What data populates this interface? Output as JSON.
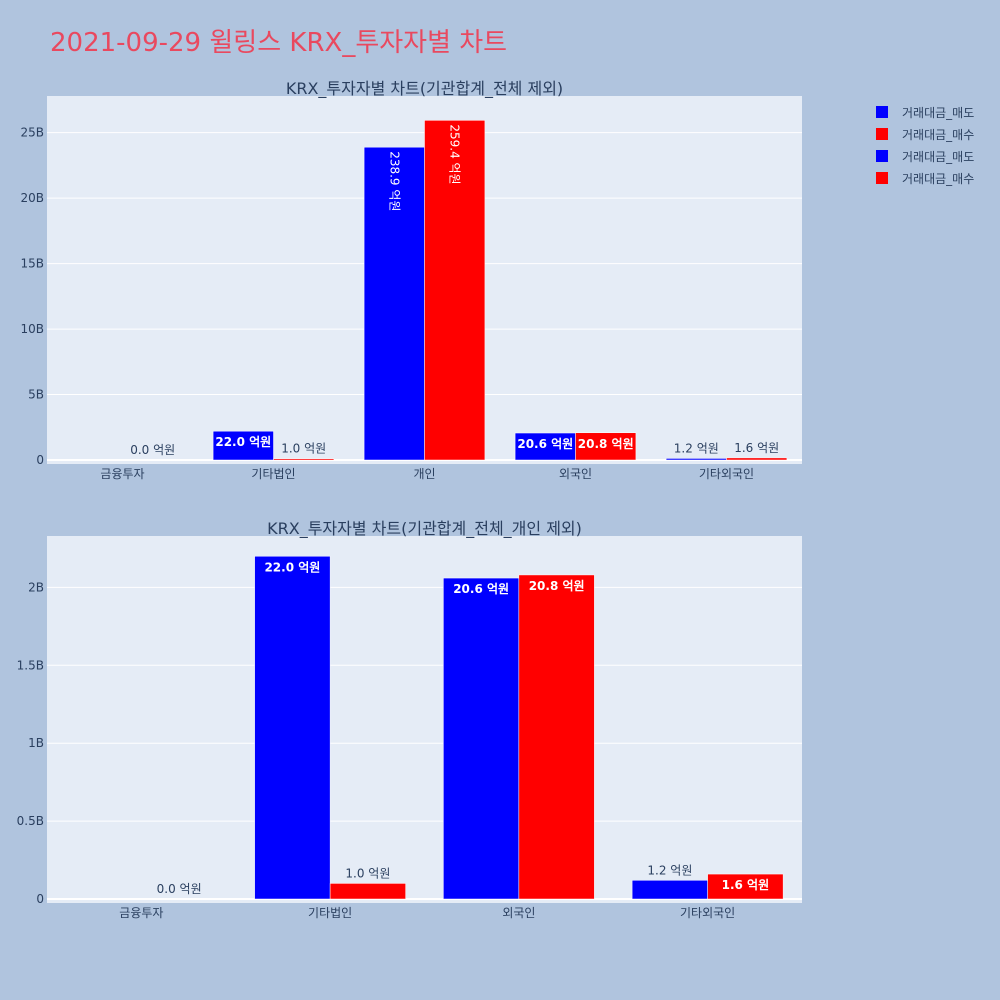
{
  "title": "2021-09-29 윌링스 KRX_투자자별 차트",
  "legend": {
    "entries": [
      {
        "name": "거래대금_매도",
        "color": "#0000ff"
      },
      {
        "name": "거래대금_매수",
        "color": "#ff0000"
      },
      {
        "name": "거래대금_매도",
        "color": "#0000ff"
      },
      {
        "name": "거래대금_매수",
        "color": "#ff0000"
      }
    ]
  },
  "colors": {
    "sell": "#0000ff",
    "buy": "#ff0000",
    "plot_bg": "#e5ecf6",
    "paper_bg": "#b0c4de"
  },
  "chart_data": [
    {
      "type": "bar",
      "title": "KRX_투자자별 차트(기관합계_전체 제외)",
      "categories": [
        "금융투자",
        "기타법인",
        "개인",
        "외국인",
        "기타외국인"
      ],
      "ylim": [
        0,
        27.8
      ],
      "yunit": "B",
      "yticks": [
        0,
        5,
        10,
        15,
        20,
        25
      ],
      "ytick_labels": [
        "0",
        "5B",
        "10B",
        "15B",
        "20B",
        "25B"
      ],
      "grid": true,
      "legend_position": "top-right",
      "series": [
        {
          "name": "거래대금_매도",
          "color": "#0000ff",
          "values": [
            0.0,
            2.2,
            23.89,
            2.06,
            0.12
          ],
          "labels": [
            "",
            "22.0 억원",
            "238.9 억원",
            "20.6 억원",
            "1.2 억원"
          ]
        },
        {
          "name": "거래대금_매수",
          "color": "#ff0000",
          "values": [
            0.0,
            0.1,
            25.94,
            2.08,
            0.16
          ],
          "labels": [
            "0.0 억원",
            "1.0 억원",
            "259.4 억원",
            "20.8 억원",
            "1.6 억원"
          ]
        }
      ]
    },
    {
      "type": "bar",
      "title": "KRX_투자자별 차트(기관합계_전체_개인 제외)",
      "categories": [
        "금융투자",
        "기타법인",
        "외국인",
        "기타외국인"
      ],
      "ylim": [
        0,
        2.33
      ],
      "yunit": "B",
      "yticks": [
        0,
        0.5,
        1,
        1.5,
        2
      ],
      "ytick_labels": [
        "0",
        "0.5B",
        "1B",
        "1.5B",
        "2B"
      ],
      "grid": true,
      "series": [
        {
          "name": "거래대금_매도",
          "color": "#0000ff",
          "values": [
            0.0,
            2.2,
            2.06,
            0.12
          ],
          "labels": [
            "",
            "22.0 억원",
            "20.6 억원",
            "1.2 억원"
          ]
        },
        {
          "name": "거래대금_매수",
          "color": "#ff0000",
          "values": [
            0.0,
            0.1,
            2.08,
            0.16
          ],
          "labels": [
            "0.0 억원",
            "1.0 억원",
            "20.8 억원",
            "1.6 억원"
          ]
        }
      ]
    }
  ]
}
